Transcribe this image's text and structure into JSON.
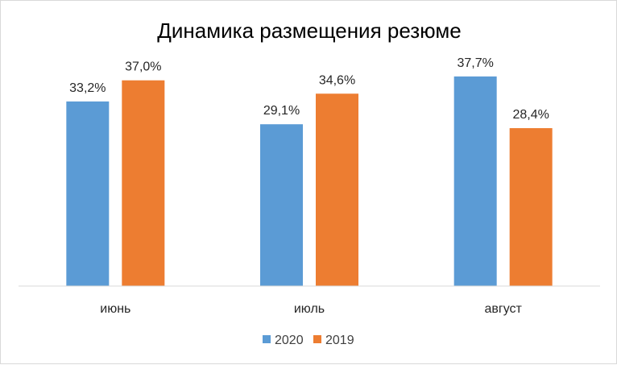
{
  "chart_data": {
    "type": "bar",
    "title": "Динамика размещения резюме",
    "categories": [
      "июнь",
      "июль",
      "август"
    ],
    "series": [
      {
        "name": "2020",
        "values": [
          33.2,
          29.1,
          37.7
        ],
        "labels": [
          "33,2%",
          "29,1%",
          "37,7%"
        ],
        "color": "#5b9bd5"
      },
      {
        "name": "2019",
        "values": [
          37.0,
          34.6,
          28.4
        ],
        "labels": [
          "37,0%",
          "34,6%",
          "28,4%"
        ],
        "color": "#ed7d31"
      }
    ],
    "ylim": [
      0,
      40
    ],
    "grid": false,
    "legend": "bottom",
    "axis_color": "#d9d9d9",
    "label_color": "#262626"
  }
}
